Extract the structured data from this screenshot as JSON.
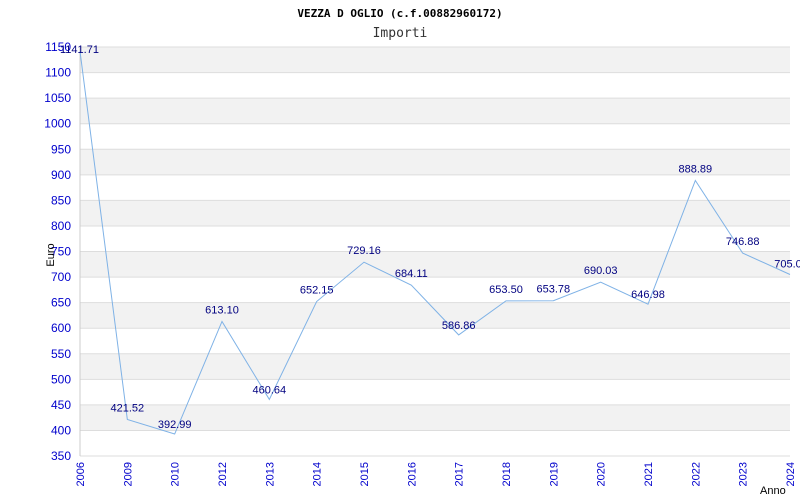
{
  "chart_data": {
    "type": "line",
    "title": "VEZZA D OGLIO (c.f.00882960172)",
    "subtitle": "Importi",
    "xlabel": "Anno",
    "ylabel": "Euro",
    "categories": [
      "2006",
      "2009",
      "2010",
      "2012",
      "2013",
      "2014",
      "2015",
      "2016",
      "2017",
      "2018",
      "2019",
      "2020",
      "2021",
      "2022",
      "2023",
      "2024"
    ],
    "values": [
      1141.71,
      421.52,
      392.99,
      613.1,
      460.64,
      652.15,
      729.16,
      684.11,
      586.86,
      653.5,
      653.78,
      690.03,
      646.98,
      888.89,
      746.88,
      705.0
    ],
    "value_labels": [
      "1141.71",
      "421.52",
      "392.99",
      "613.10",
      "460.64",
      "652.15",
      "729.16",
      "684.11",
      "586.86",
      "653.50",
      "653.78",
      "690.03",
      "646.98",
      "888.89",
      "746.88",
      "705.0"
    ],
    "ylim": [
      350,
      1150
    ],
    "yticks": [
      350,
      400,
      450,
      500,
      550,
      600,
      650,
      700,
      750,
      800,
      850,
      900,
      950,
      1000,
      1050,
      1100,
      1150
    ],
    "grid": true,
    "colors": {
      "line": "#7fb2e6",
      "band_alt": "#f2f2f2",
      "gridline": "#dddddd",
      "tick_text": "#0000cc",
      "label_text": "#000080"
    }
  }
}
